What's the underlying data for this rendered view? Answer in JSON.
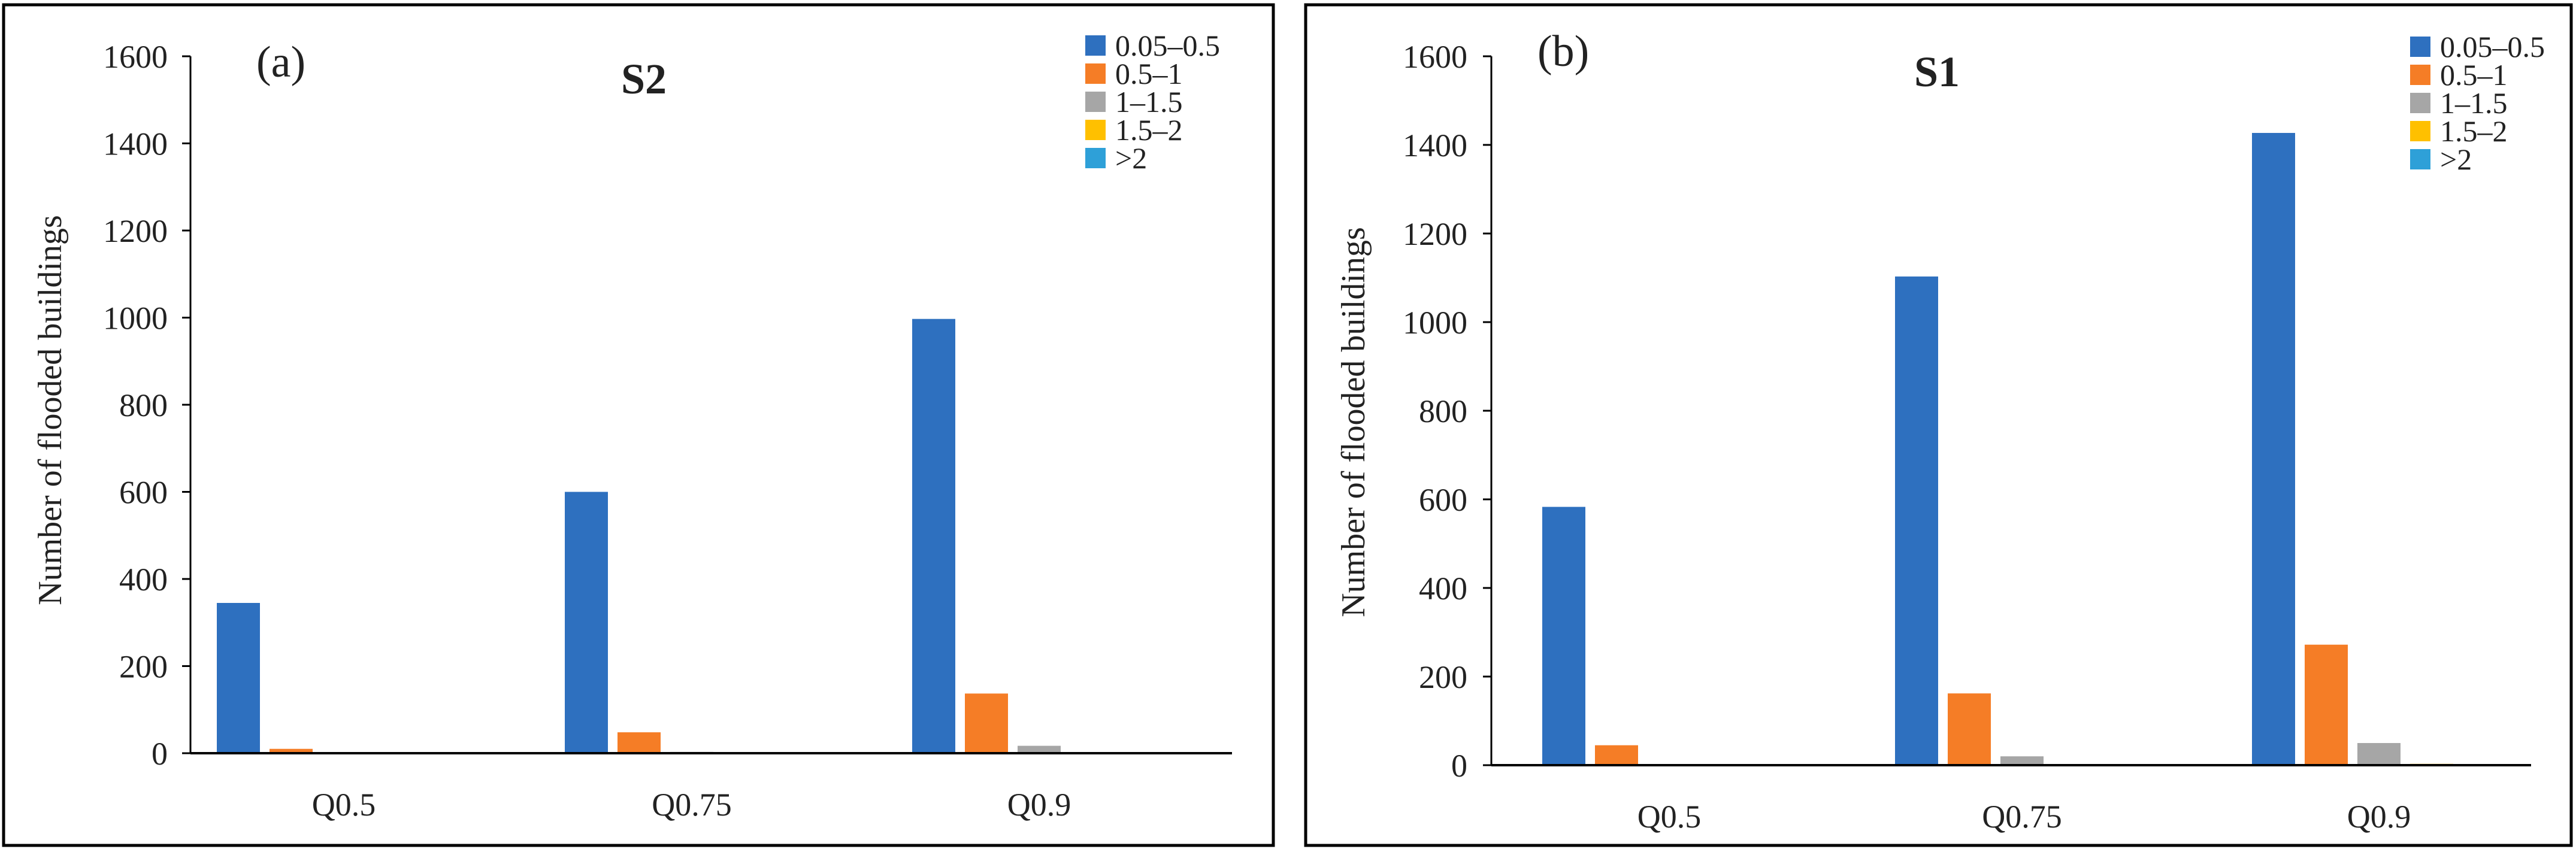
{
  "colors": {
    "0.05–0.5": "#2E70BF",
    "0.5–1": "#F57D26",
    "1–1.5": "#A6A6A6",
    "1.5–2": "#FFC000",
    ">2": "#2EA0D8",
    "frame": "#000000",
    "axis": "#000000"
  },
  "chart_data": [
    {
      "type": "bar",
      "panel_label": "(a)",
      "title": "S2",
      "ylabel": "Number of flooded buildings",
      "xlabel": "",
      "ylim": [
        0,
        1600
      ],
      "yticks": [
        0,
        200,
        400,
        600,
        800,
        1000,
        1200,
        1400,
        1600
      ],
      "grid": false,
      "legend_position": "top-right",
      "categories": [
        "Q0.5",
        "Q0.75",
        "Q0.9"
      ],
      "series": [
        {
          "name": "0.05–0.5",
          "values": [
            345,
            600,
            997
          ]
        },
        {
          "name": "0.5–1",
          "values": [
            10,
            48,
            137
          ]
        },
        {
          "name": "1–1.5",
          "values": [
            0,
            3,
            17
          ]
        },
        {
          "name": "1.5–2",
          "values": [
            0,
            0,
            1
          ]
        },
        {
          "name": ">2",
          "values": [
            0,
            0,
            0
          ]
        }
      ]
    },
    {
      "type": "bar",
      "panel_label": "(b)",
      "title": "S1",
      "ylabel": "Number of flooded buildings",
      "xlabel": "",
      "ylim": [
        0,
        1600
      ],
      "yticks": [
        0,
        200,
        400,
        600,
        800,
        1000,
        1200,
        1400,
        1600
      ],
      "grid": false,
      "legend_position": "top-right",
      "categories": [
        "Q0.5",
        "Q0.75",
        "Q0.9"
      ],
      "series": [
        {
          "name": "0.05–0.5",
          "values": [
            583,
            1103,
            1427
          ]
        },
        {
          "name": "0.5–1",
          "values": [
            45,
            162,
            272
          ]
        },
        {
          "name": "1–1.5",
          "values": [
            2,
            20,
            50
          ]
        },
        {
          "name": "1.5–2",
          "values": [
            0,
            1,
            3
          ]
        },
        {
          "name": ">2",
          "values": [
            0,
            0,
            0
          ]
        }
      ]
    }
  ]
}
